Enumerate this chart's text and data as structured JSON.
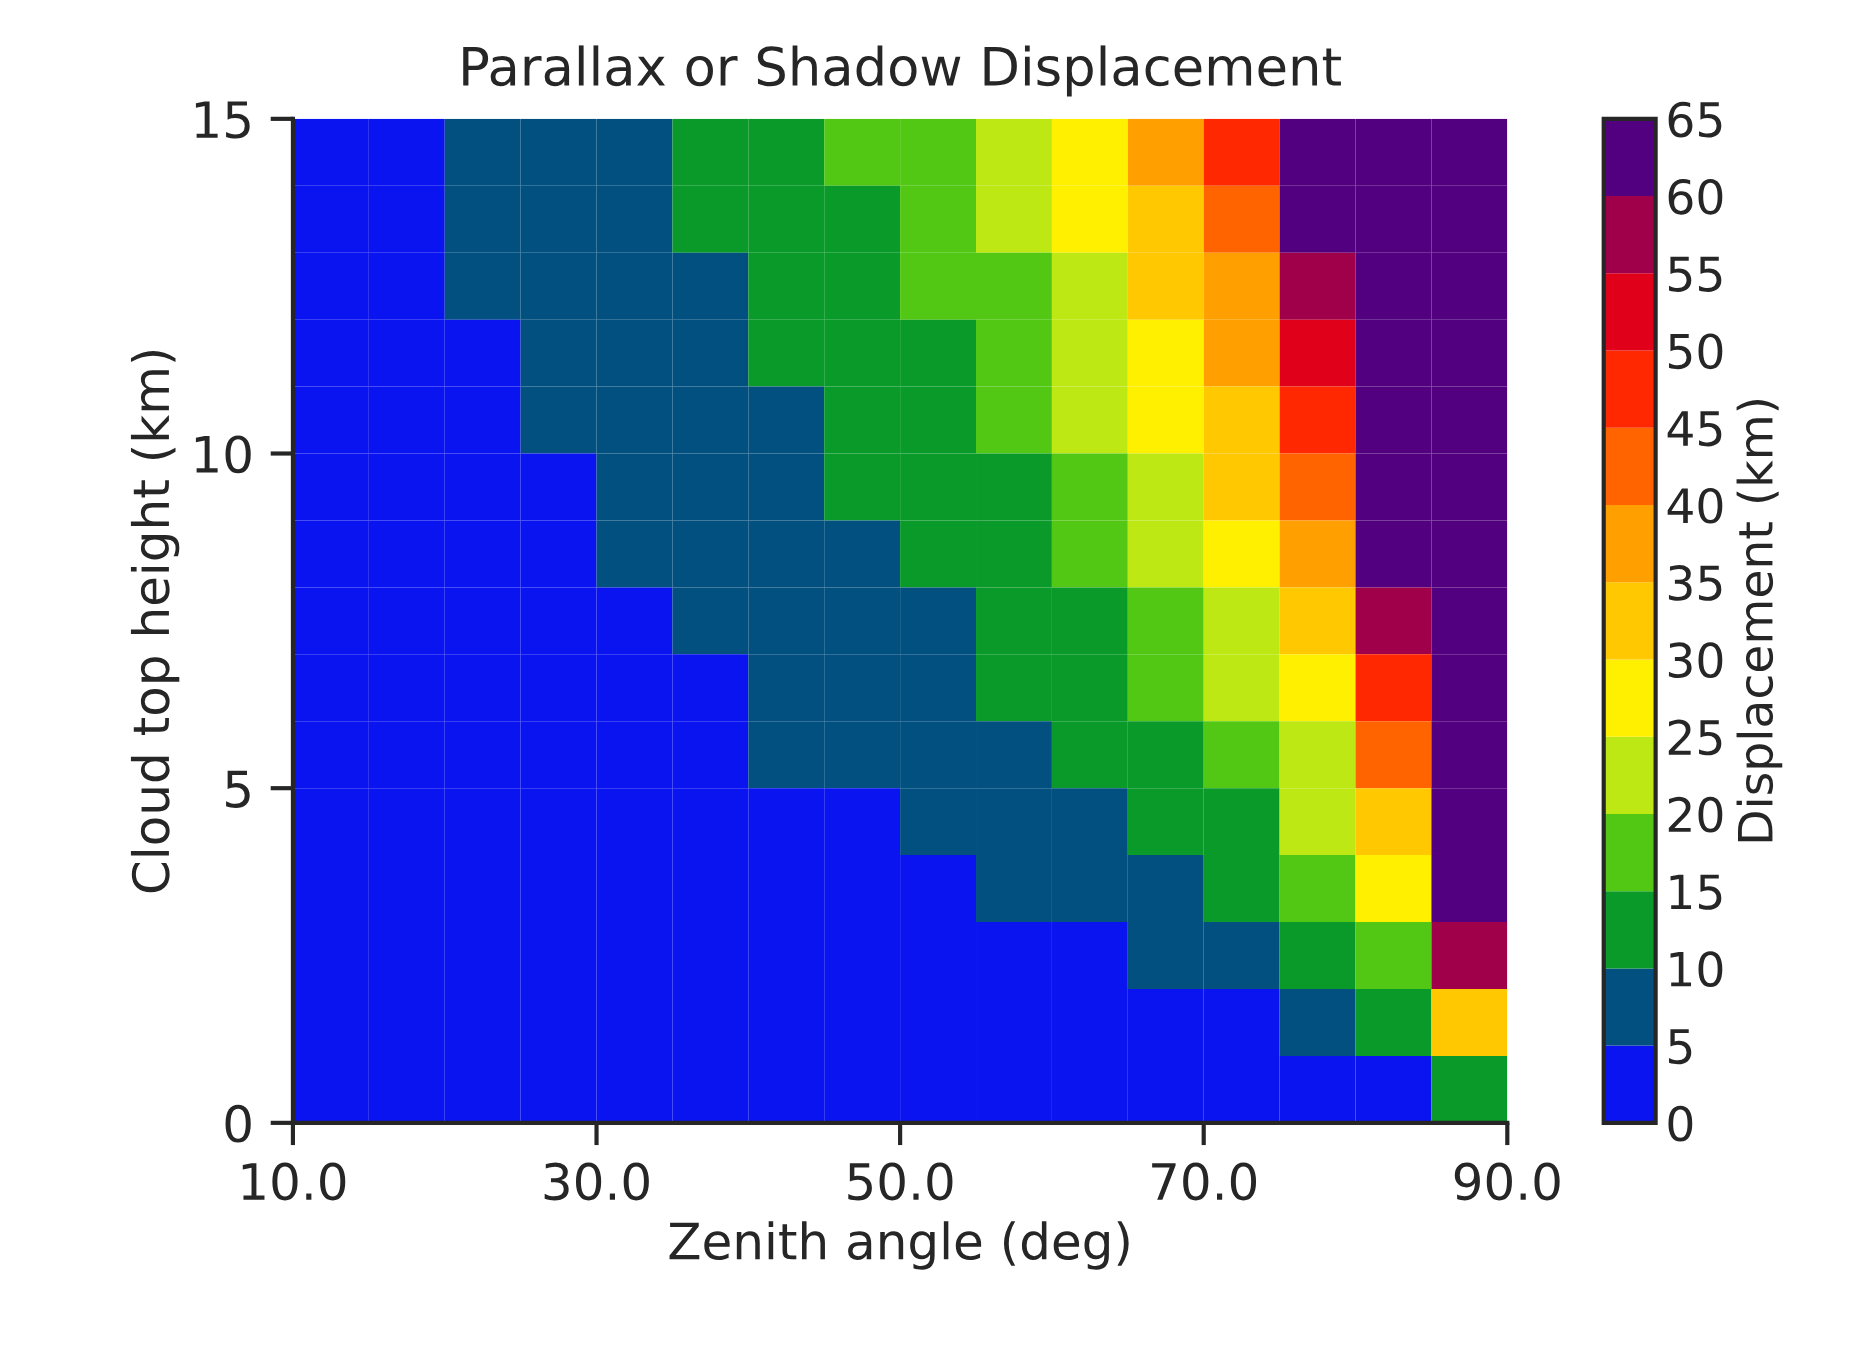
{
  "chart_data": {
    "type": "heatmap",
    "title": "Parallax or Shadow Displacement",
    "xlabel": "Zenith angle (deg)",
    "ylabel": "Cloud top height (km)",
    "clabel": "Displacement (km)",
    "x": [
      12.5,
      17.5,
      22.5,
      27.5,
      32.5,
      37.5,
      42.5,
      47.5,
      52.5,
      57.5,
      62.5,
      67.5,
      72.5,
      77.5,
      82.5,
      87.5
    ],
    "y": [
      14.5,
      13.5,
      12.5,
      11.5,
      10.5,
      9.5,
      8.5,
      7.5,
      6.5,
      5.5,
      4.5,
      3.5,
      2.5,
      1.5,
      0.5
    ],
    "cells": [
      [
        0,
        0,
        5,
        5,
        5,
        10,
        10,
        15,
        15,
        20,
        25,
        35,
        45,
        60,
        60,
        60
      ],
      [
        0,
        0,
        5,
        5,
        5,
        10,
        10,
        10,
        15,
        20,
        25,
        30,
        40,
        60,
        60,
        60
      ],
      [
        0,
        0,
        5,
        5,
        5,
        5,
        10,
        10,
        15,
        15,
        20,
        30,
        35,
        55,
        60,
        60
      ],
      [
        0,
        0,
        0,
        5,
        5,
        5,
        10,
        10,
        10,
        15,
        20,
        25,
        35,
        50,
        60,
        60
      ],
      [
        0,
        0,
        0,
        5,
        5,
        5,
        5,
        10,
        10,
        15,
        20,
        25,
        30,
        45,
        60,
        60
      ],
      [
        0,
        0,
        0,
        0,
        5,
        5,
        5,
        10,
        10,
        10,
        15,
        20,
        30,
        40,
        60,
        60
      ],
      [
        0,
        0,
        0,
        0,
        5,
        5,
        5,
        5,
        10,
        10,
        15,
        20,
        25,
        35,
        60,
        60
      ],
      [
        0,
        0,
        0,
        0,
        0,
        5,
        5,
        5,
        5,
        10,
        10,
        15,
        20,
        30,
        55,
        60
      ],
      [
        0,
        0,
        0,
        0,
        0,
        0,
        5,
        5,
        5,
        10,
        10,
        15,
        20,
        25,
        45,
        60
      ],
      [
        0,
        0,
        0,
        0,
        0,
        0,
        5,
        5,
        5,
        5,
        10,
        10,
        15,
        20,
        40,
        60
      ],
      [
        0,
        0,
        0,
        0,
        0,
        0,
        0,
        0,
        5,
        5,
        5,
        10,
        10,
        20,
        30,
        60
      ],
      [
        0,
        0,
        0,
        0,
        0,
        0,
        0,
        0,
        0,
        5,
        5,
        5,
        10,
        15,
        25,
        60
      ],
      [
        0,
        0,
        0,
        0,
        0,
        0,
        0,
        0,
        0,
        0,
        0,
        5,
        5,
        10,
        15,
        55
      ],
      [
        0,
        0,
        0,
        0,
        0,
        0,
        0,
        0,
        0,
        0,
        0,
        0,
        0,
        5,
        10,
        30
      ],
      [
        0,
        0,
        0,
        0,
        0,
        0,
        0,
        0,
        0,
        0,
        0,
        0,
        0,
        0,
        0,
        10
      ]
    ],
    "colors": [
      "#0a14f0",
      "#02507f",
      "#0a9a2a",
      "#52c814",
      "#bde814",
      "#fff000",
      "#ffc800",
      "#ffa000",
      "#ff6400",
      "#ff2800",
      "#e0001a",
      "#a0004a",
      "#52007f"
    ],
    "xlim": [
      10,
      90
    ],
    "xticks": [
      {
        "value": 10,
        "label": "10.0"
      },
      {
        "value": 30,
        "label": "30.0"
      },
      {
        "value": 50,
        "label": "50.0"
      },
      {
        "value": 70,
        "label": "70.0"
      },
      {
        "value": 90,
        "label": "90.0"
      }
    ],
    "ylim": [
      0,
      15
    ],
    "yticks": [
      0,
      5,
      10,
      15
    ],
    "clim": [
      0,
      65
    ],
    "cticks": [
      0,
      5,
      10,
      15,
      20,
      25,
      30,
      35,
      40,
      45,
      50,
      55,
      60,
      65
    ]
  }
}
